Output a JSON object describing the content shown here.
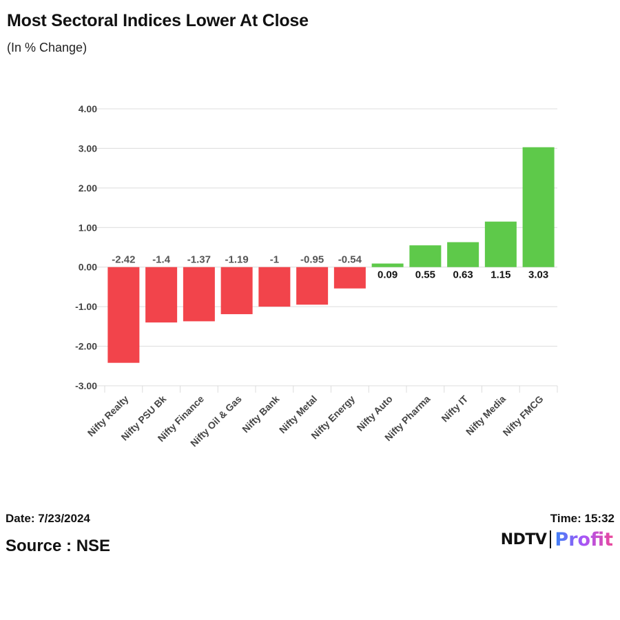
{
  "title": "Most Sectoral Indices Lower At Close",
  "subtitle": "(In % Change)",
  "footer": {
    "date": "Date: 7/23/2024",
    "time": "Time: 15:32",
    "source": "Source : NSE",
    "logo_left": "NDTV",
    "logo_right": "Profit"
  },
  "colors": {
    "negative": "#f2444b",
    "positive": "#5ec94a",
    "grid": "#dcdcdc",
    "axis_text": "#444444",
    "label_neg": "#555555",
    "label_pos": "#111111"
  },
  "chart_data": {
    "type": "bar",
    "categories": [
      "Nifty Realty",
      "Nifty PSU Bk",
      "Nifty Finance",
      "Nifty Oil & Gas",
      "Nifty Bank",
      "Nifty Metal",
      "Nifty Energy",
      "Nifty Auto",
      "Nifty Pharma",
      "Nifty IT",
      "Nifty Media",
      "Nifty FMCG"
    ],
    "values": [
      -2.42,
      -1.4,
      -1.37,
      -1.19,
      -1,
      -0.95,
      -0.54,
      0.09,
      0.55,
      0.63,
      1.15,
      3.03
    ],
    "data_labels": [
      "-2.42",
      "-1.4",
      "-1.37",
      "-1.19",
      "-1",
      "-0.95",
      "-0.54",
      "0.09",
      "0.55",
      "0.63",
      "1.15",
      "3.03"
    ],
    "yticks": [
      "4.00",
      "3.00",
      "2.00",
      "1.00",
      "0.00",
      "-1.00",
      "-2.00",
      "-3.00"
    ],
    "ylim": [
      -3,
      4
    ],
    "grid": true,
    "title": "Most Sectoral Indices Lower At Close",
    "xlabel": "",
    "ylabel": ""
  }
}
